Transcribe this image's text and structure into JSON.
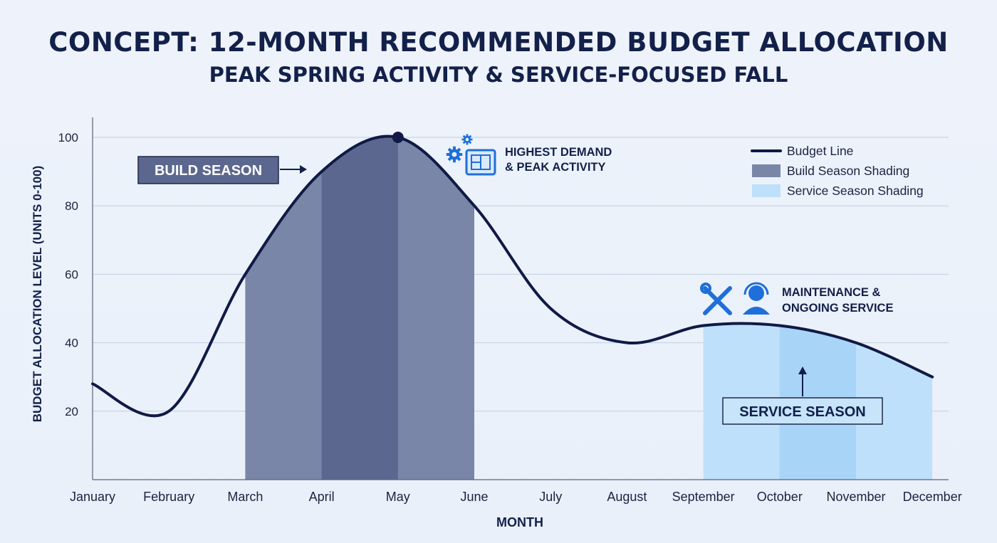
{
  "header": {
    "title": "CONCEPT: 12-MONTH RECOMMENDED BUDGET ALLOCATION",
    "subtitle": "PEAK SPRING ACTIVITY & SERVICE-FOCUSED FALL"
  },
  "chart_data": {
    "type": "line",
    "title": "CONCEPT: 12-MONTH RECOMMENDED BUDGET ALLOCATION",
    "subtitle": "PEAK SPRING ACTIVITY & SERVICE-FOCUSED FALL",
    "xlabel": "MONTH",
    "ylabel": "BUDGET ALLOCATION LEVEL (UNITS 0-100)",
    "ylim": [
      0,
      100
    ],
    "yticks": [
      20,
      40,
      60,
      80,
      100
    ],
    "grid": true,
    "legend_position": "top-right",
    "categories": [
      "January",
      "February",
      "March",
      "April",
      "May",
      "June",
      "July",
      "August",
      "September",
      "October",
      "November",
      "December"
    ],
    "series": [
      {
        "name": "Budget Line",
        "values": [
          28,
          20,
          60,
          90,
          100,
          80,
          50,
          40,
          45,
          45,
          40,
          30
        ],
        "color": "#101a45"
      }
    ],
    "peak_marker": {
      "category": "May",
      "value": 100
    },
    "shading": {
      "build": {
        "name": "Build Season Shading",
        "from": "March",
        "to": "June",
        "color": "#7a86a8",
        "core_color": "#5b678f"
      },
      "service": {
        "name": "Service Season Shading",
        "from": "September",
        "to": "December",
        "color": "#bfe0fa",
        "core_color": "#a8d4f7"
      }
    },
    "legend": [
      {
        "label": "Budget Line",
        "kind": "line",
        "color": "#101a45"
      },
      {
        "label": "Build Season Shading",
        "kind": "box",
        "color": "#7a86a8"
      },
      {
        "label": "Service Season Shading",
        "kind": "box",
        "color": "#bfe0fa"
      }
    ],
    "annotations": {
      "build_season": "BUILD SEASON",
      "service_season": "SERVICE SEASON",
      "peak_line1": "HIGHEST DEMAND",
      "peak_line2": "& PEAK ACTIVITY",
      "service_line1": "MAINTENANCE &",
      "service_line2": "ONGOING SERVICE"
    },
    "icons": [
      "gear-icon",
      "blueprint-icon",
      "wrench-screwdriver-icon",
      "support-headset-icon"
    ]
  }
}
